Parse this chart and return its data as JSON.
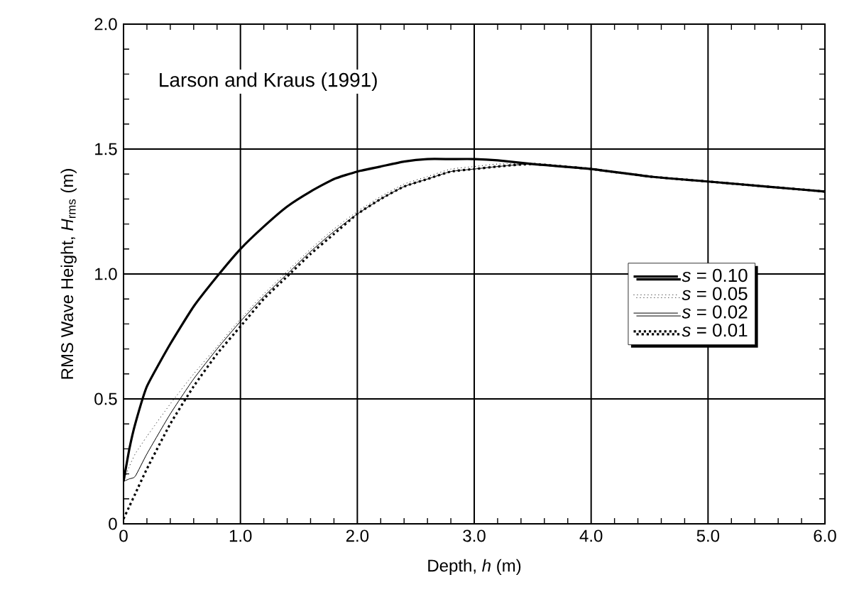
{
  "chart_data": {
    "type": "line",
    "xlabel": "Depth,  *h* (m)",
    "ylabel": "RMS  Wave  Height,  *H*$_{rms}$ (m)",
    "annotations": [
      "Larson and Kraus (1991)"
    ],
    "xlim": [
      0,
      6
    ],
    "ylim": [
      0,
      2
    ],
    "xticks": [
      0,
      {
        "value": 1,
        "label": "1.0"
      },
      {
        "value": 2,
        "label": "2.0"
      },
      {
        "value": 3,
        "label": "3.0"
      },
      {
        "value": 4,
        "label": "4.0"
      },
      {
        "value": 5,
        "label": "5.0"
      },
      {
        "value": 6,
        "label": "6.0"
      }
    ],
    "yticks": [
      0,
      0.5,
      {
        "value": 1,
        "label": "1.0"
      },
      1.5,
      {
        "value": 2,
        "label": "2.0"
      }
    ],
    "grid": true,
    "legend": "right",
    "marker": "none",
    "x": [
      0,
      0.05,
      0.1,
      0.2,
      0.4,
      0.6,
      0.8,
      1.0,
      1.2,
      1.4,
      1.6,
      1.8,
      2.0,
      2.2,
      2.4,
      2.6,
      2.8,
      3.0,
      3.2,
      3.5,
      4.0,
      4.5,
      5.0,
      5.5,
      6.0
    ],
    "series": [
      {
        "name": "*s* = 0.10",
        "color": "#000000",
        "line_style": "solid",
        "values": [
          0.17,
          0.3,
          0.4,
          0.55,
          0.72,
          0.87,
          0.99,
          1.1,
          1.19,
          1.27,
          1.33,
          1.38,
          1.41,
          1.43,
          1.45,
          1.46,
          1.46,
          1.46,
          1.455,
          1.44,
          1.42,
          1.39,
          1.37,
          1.35,
          1.33
        ]
      },
      {
        "name": "*s* = 0.05",
        "color": "#000000",
        "line_style": "dotted",
        "values": [
          0.17,
          0.23,
          0.28,
          0.35,
          0.48,
          0.6,
          0.71,
          0.82,
          0.92,
          1.01,
          1.1,
          1.18,
          1.25,
          1.31,
          1.36,
          1.39,
          1.42,
          1.43,
          1.44,
          1.44,
          1.42,
          1.39,
          1.37,
          1.35,
          1.33
        ]
      },
      {
        "name": "*s* = 0.02",
        "color": "#000000",
        "line_style": "solid",
        "values": [
          0.17,
          0.18,
          0.19,
          0.28,
          0.44,
          0.58,
          0.7,
          0.81,
          0.91,
          1.0,
          1.09,
          1.17,
          1.24,
          1.3,
          1.35,
          1.38,
          1.41,
          1.42,
          1.43,
          1.44,
          1.42,
          1.39,
          1.37,
          1.35,
          1.33
        ]
      },
      {
        "name": "*s* = 0.01",
        "color": "#000000",
        "line_style": "dotted",
        "values": [
          0.02,
          0.07,
          0.12,
          0.22,
          0.4,
          0.55,
          0.68,
          0.79,
          0.9,
          0.99,
          1.08,
          1.16,
          1.24,
          1.3,
          1.35,
          1.38,
          1.41,
          1.42,
          1.43,
          1.44,
          1.42,
          1.39,
          1.37,
          1.35,
          1.33
        ]
      }
    ]
  }
}
